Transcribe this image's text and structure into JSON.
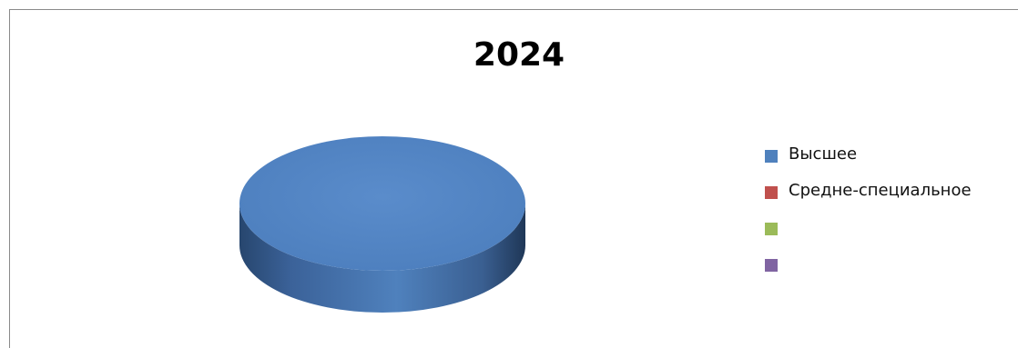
{
  "chart_data": {
    "type": "pie",
    "title": "2024",
    "style": "3d",
    "labels": [
      "Высшее",
      "Средне-специальное",
      "",
      ""
    ],
    "values": [
      100,
      0,
      0,
      0
    ],
    "colors": [
      "#4f81bd",
      "#c0504d",
      "#9bbb59",
      "#8064a2"
    ],
    "legend_position": "right"
  }
}
